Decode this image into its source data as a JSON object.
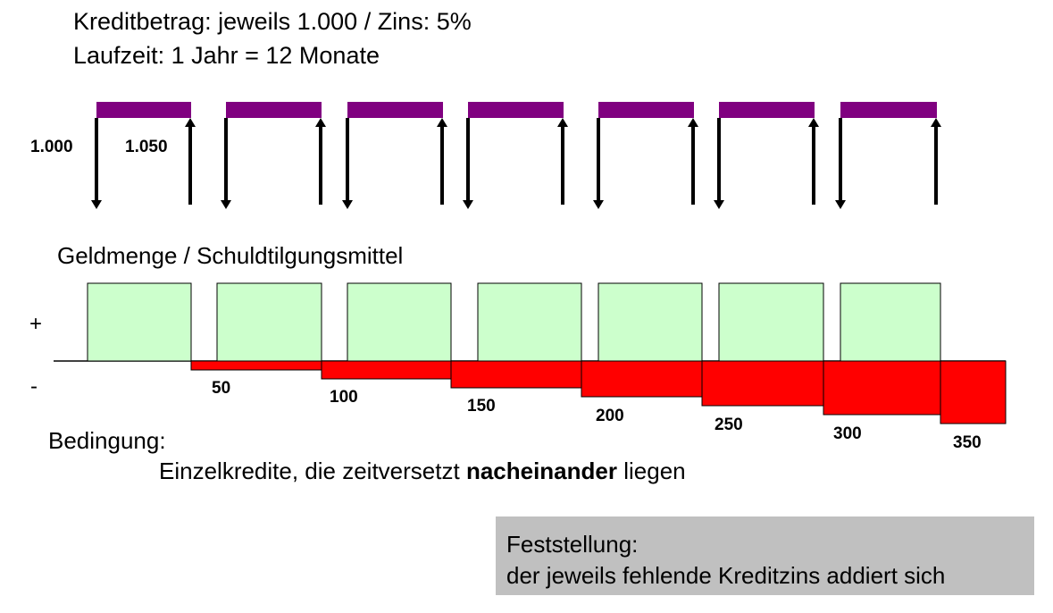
{
  "header": {
    "line1": "Kreditbetrag: jeweils 1.000   /   Zins: 5%",
    "line2": "Laufzeit: 1 Jahr = 12 Monate"
  },
  "arrows": {
    "amount_out": "1.000",
    "amount_back": "1.050"
  },
  "section_title": "Geldmenge / Schuldtilgungsmittel",
  "signs": {
    "plus": "+",
    "minus": "-"
  },
  "deficit_labels": [
    "50",
    "100",
    "150",
    "200",
    "250",
    "300",
    "350"
  ],
  "condition": {
    "label": "Bedingung:",
    "text_before": "Einzelkredite, die zeitversetzt ",
    "text_bold": "nacheinander",
    "text_after": " liegen"
  },
  "finding": {
    "line1": "Feststellung:",
    "line2": "der jeweils fehlende Kreditzins addiert sich"
  },
  "colors": {
    "loan_bar": "#800080",
    "money_box": "#ccffcc",
    "deficit": "#ff0000",
    "finding_bg": "#c0c0c0"
  },
  "chart_data": {
    "type": "diagram",
    "loans": 7,
    "loan_amount": 1000,
    "interest_rate_percent": 5,
    "repayment": 1050,
    "cumulative_deficit": [
      50,
      100,
      150,
      200,
      250,
      300,
      350
    ]
  }
}
